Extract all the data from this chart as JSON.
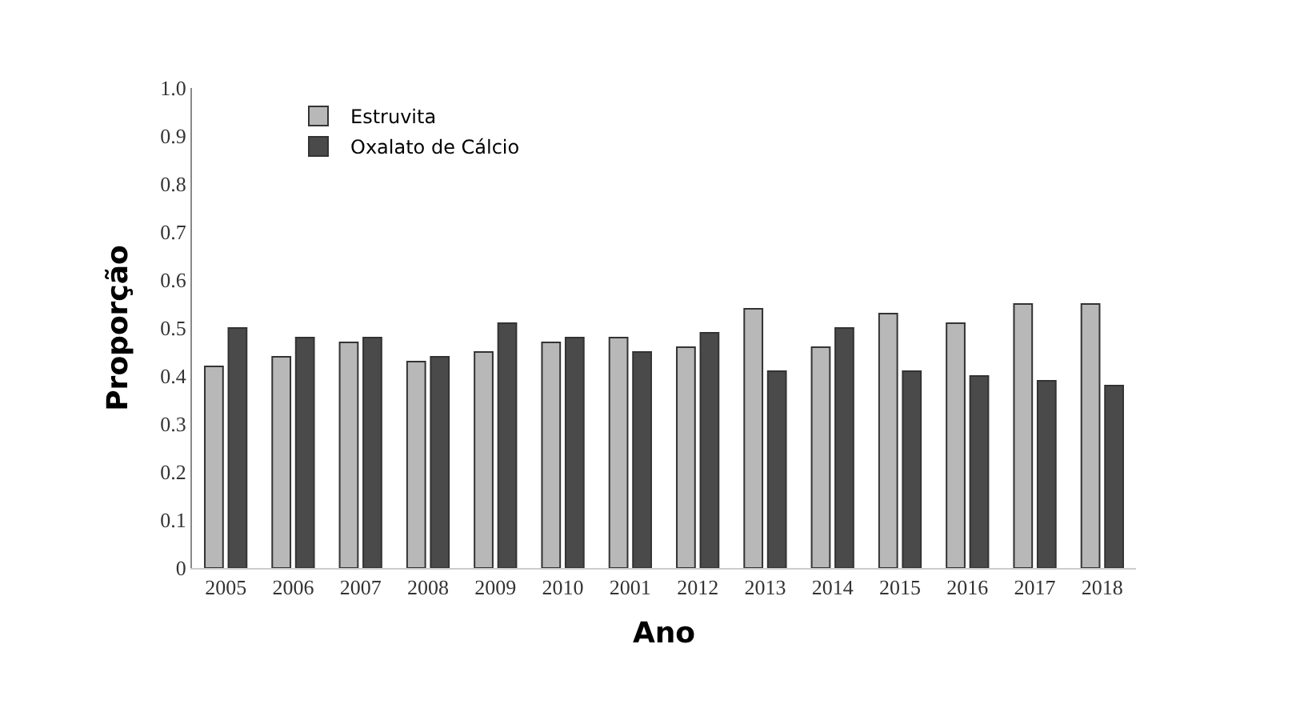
{
  "chart_data": {
    "type": "bar",
    "xlabel": "Ano",
    "ylabel": "Proporção",
    "categories": [
      "2005",
      "2006",
      "2007",
      "2008",
      "2009",
      "2010",
      "2001",
      "2012",
      "2013",
      "2014",
      "2015",
      "2016",
      "2017",
      "2018"
    ],
    "series": [
      {
        "name": "Estruvita",
        "color": "#b8b8b8",
        "values": [
          0.42,
          0.44,
          0.47,
          0.43,
          0.45,
          0.47,
          0.48,
          0.46,
          0.54,
          0.46,
          0.53,
          0.51,
          0.55,
          0.55
        ]
      },
      {
        "name": "Oxalato de Cálcio",
        "color": "#4a4a4a",
        "values": [
          0.5,
          0.48,
          0.48,
          0.44,
          0.51,
          0.48,
          0.45,
          0.49,
          0.41,
          0.5,
          0.41,
          0.4,
          0.39,
          0.38
        ]
      }
    ],
    "ylim": [
      0,
      1.0
    ],
    "yticks": [
      0,
      0.1,
      0.2,
      0.3,
      0.4,
      0.5,
      0.6,
      0.7,
      0.8,
      0.9,
      {
        "value": 1.0,
        "label": "1.0"
      }
    ],
    "legend": "top left"
  }
}
